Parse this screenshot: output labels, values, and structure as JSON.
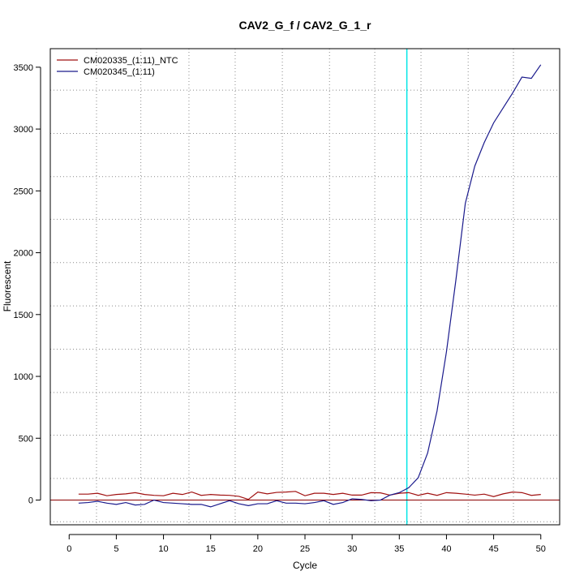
{
  "chart_data": {
    "type": "line",
    "title": "CAV2_G_f / CAV2_G_1_r",
    "xlabel": "Cycle",
    "ylabel": "Fluorescent",
    "xlim": [
      -2,
      52
    ],
    "ylim": [
      -200,
      3650
    ],
    "x_ticks": [
      0,
      5,
      10,
      15,
      20,
      25,
      30,
      35,
      40,
      45,
      50
    ],
    "y_ticks": [
      0,
      500,
      1000,
      1500,
      2000,
      2500,
      3000,
      3500
    ],
    "x_grid": [
      2.9,
      7.6,
      12.7,
      17.6,
      22.6,
      27.6,
      32.4,
      37.3,
      42.3,
      47.1
    ],
    "y_grid": [
      -175,
      175,
      525,
      870,
      1220,
      1570,
      1920,
      2270,
      2615,
      2965,
      3315
    ],
    "grid": true,
    "grid_style": "dotted",
    "threshold_x": 35.8,
    "threshold_color": "#00e5e5",
    "baseline_y": 0,
    "baseline_color": "#8b0000",
    "legend_position": "top-left",
    "x": [
      1,
      2,
      3,
      4,
      5,
      6,
      7,
      8,
      9,
      10,
      11,
      12,
      13,
      14,
      15,
      16,
      17,
      18,
      19,
      20,
      21,
      22,
      23,
      24,
      25,
      26,
      27,
      28,
      29,
      30,
      31,
      32,
      33,
      34,
      35,
      36,
      37,
      38,
      39,
      40,
      41,
      42,
      43,
      44,
      45,
      46,
      47,
      48,
      49,
      50
    ],
    "series": [
      {
        "name": "CM020335_(1:11)_NTC",
        "color": "#a01010",
        "values": [
          48,
          48,
          55,
          35,
          45,
          50,
          60,
          45,
          38,
          35,
          55,
          45,
          65,
          38,
          45,
          40,
          38,
          30,
          5,
          65,
          50,
          62,
          65,
          70,
          35,
          55,
          55,
          45,
          55,
          40,
          40,
          60,
          58,
          40,
          55,
          60,
          38,
          55,
          38,
          60,
          55,
          48,
          40,
          48,
          28,
          50,
          65,
          60,
          38,
          45
        ]
      },
      {
        "name": "CM020345_(1:11)",
        "color": "#1a1a8c",
        "values": [
          -25,
          -20,
          -10,
          -25,
          -35,
          -20,
          -40,
          -35,
          0,
          -20,
          -25,
          -30,
          -35,
          -35,
          -55,
          -30,
          -5,
          -30,
          -45,
          -30,
          -30,
          -5,
          -25,
          -25,
          -30,
          -20,
          -5,
          -35,
          -20,
          10,
          5,
          -5,
          0,
          40,
          60,
          100,
          180,
          380,
          720,
          1200,
          1780,
          2400,
          2700,
          2890,
          3050,
          3170,
          3290,
          3420,
          3410,
          3520
        ]
      }
    ]
  }
}
